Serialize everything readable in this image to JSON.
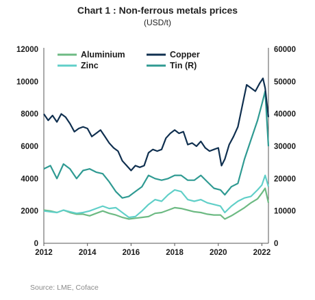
{
  "chart_data": {
    "type": "line",
    "title": "Chart 1 : Non-ferrous metals prices",
    "subtitle": "(USD/t)",
    "source": "Source: LME, Coface",
    "x_ticks": [
      "2012",
      "2014",
      "2016",
      "2018",
      "2020",
      "2022"
    ],
    "xlim": [
      2012,
      2022.3
    ],
    "y_left": {
      "ticks": [
        "0",
        "2000",
        "4000",
        "6000",
        "8000",
        "10000",
        "12000"
      ],
      "lim": [
        0,
        12000
      ]
    },
    "y_right": {
      "ticks": [
        "0",
        "10000",
        "20000",
        "30000",
        "40000",
        "50000",
        "60000"
      ],
      "lim": [
        0,
        60000
      ]
    },
    "legend_position": "top",
    "grid": false,
    "series": [
      {
        "name": "Aluminium",
        "axis": "left",
        "color": "#6dba83",
        "x": [
          2012.0,
          2012.3,
          2012.6,
          2012.9,
          2013.2,
          2013.5,
          2013.8,
          2014.1,
          2014.4,
          2014.7,
          2015.0,
          2015.3,
          2015.6,
          2015.9,
          2016.2,
          2016.5,
          2016.8,
          2017.1,
          2017.4,
          2017.7,
          2018.0,
          2018.3,
          2018.6,
          2018.9,
          2019.2,
          2019.5,
          2019.8,
          2020.1,
          2020.3,
          2020.6,
          2020.9,
          2021.2,
          2021.5,
          2021.8,
          2022.0,
          2022.15,
          2022.3
        ],
        "y": [
          2050,
          2000,
          1900,
          2050,
          1900,
          1800,
          1800,
          1700,
          1850,
          2000,
          1850,
          1750,
          1600,
          1500,
          1550,
          1600,
          1650,
          1850,
          1900,
          2050,
          2200,
          2150,
          2050,
          1950,
          1900,
          1800,
          1750,
          1750,
          1500,
          1700,
          1950,
          2200,
          2500,
          2750,
          3100,
          3400,
          2500
        ]
      },
      {
        "name": "Copper",
        "axis": "left",
        "color": "#0f2f4f",
        "x": [
          2012.0,
          2012.2,
          2012.4,
          2012.6,
          2012.8,
          2013.0,
          2013.2,
          2013.4,
          2013.6,
          2013.8,
          2014.0,
          2014.2,
          2014.4,
          2014.6,
          2014.8,
          2015.0,
          2015.2,
          2015.4,
          2015.6,
          2015.8,
          2016.0,
          2016.2,
          2016.4,
          2016.6,
          2016.8,
          2017.0,
          2017.2,
          2017.4,
          2017.6,
          2017.8,
          2018.0,
          2018.2,
          2018.4,
          2018.6,
          2018.8,
          2019.0,
          2019.2,
          2019.4,
          2019.6,
          2019.8,
          2020.0,
          2020.15,
          2020.3,
          2020.5,
          2020.7,
          2020.9,
          2021.1,
          2021.3,
          2021.5,
          2021.7,
          2021.9,
          2022.05,
          2022.15,
          2022.3
        ],
        "y": [
          8000,
          7600,
          7900,
          7500,
          8000,
          7800,
          7400,
          6900,
          7100,
          7200,
          7100,
          6600,
          6800,
          7000,
          6600,
          6200,
          5900,
          5700,
          5100,
          4800,
          4500,
          4800,
          4700,
          4800,
          5600,
          5800,
          5700,
          5800,
          6500,
          6800,
          7000,
          6800,
          6900,
          6100,
          6200,
          6000,
          6300,
          5900,
          5700,
          5800,
          5900,
          4800,
          5200,
          6100,
          6600,
          7200,
          8500,
          9800,
          9600,
          9400,
          9900,
          10200,
          9600,
          7800
        ]
      },
      {
        "name": "Zinc",
        "axis": "left",
        "color": "#60cfc8",
        "x": [
          2012.0,
          2012.3,
          2012.6,
          2012.9,
          2013.2,
          2013.5,
          2013.8,
          2014.1,
          2014.4,
          2014.7,
          2015.0,
          2015.3,
          2015.6,
          2015.9,
          2016.2,
          2016.5,
          2016.8,
          2017.1,
          2017.4,
          2017.7,
          2018.0,
          2018.3,
          2018.6,
          2018.9,
          2019.2,
          2019.5,
          2019.8,
          2020.1,
          2020.3,
          2020.6,
          2020.9,
          2021.2,
          2021.5,
          2021.8,
          2022.0,
          2022.15,
          2022.3
        ],
        "y": [
          2000,
          1950,
          1900,
          2050,
          1950,
          1850,
          1900,
          2000,
          2150,
          2300,
          2150,
          2200,
          1900,
          1600,
          1650,
          2000,
          2400,
          2700,
          2600,
          3000,
          3300,
          3200,
          2700,
          2600,
          2700,
          2500,
          2400,
          2300,
          1900,
          2300,
          2600,
          2800,
          2900,
          3300,
          3600,
          4200,
          3500
        ]
      },
      {
        "name": "Tin (R)",
        "axis": "right",
        "color": "#2f9a92",
        "x": [
          2012.0,
          2012.3,
          2012.6,
          2012.9,
          2013.2,
          2013.5,
          2013.8,
          2014.1,
          2014.4,
          2014.7,
          2015.0,
          2015.3,
          2015.6,
          2015.9,
          2016.2,
          2016.5,
          2016.8,
          2017.1,
          2017.4,
          2017.7,
          2018.0,
          2018.3,
          2018.6,
          2018.9,
          2019.2,
          2019.5,
          2019.8,
          2020.1,
          2020.3,
          2020.6,
          2020.9,
          2021.2,
          2021.5,
          2021.8,
          2022.0,
          2022.15,
          2022.3
        ],
        "y": [
          23000,
          24000,
          20000,
          24500,
          23000,
          20000,
          22500,
          23000,
          22000,
          21500,
          19000,
          16000,
          14000,
          14500,
          16000,
          17500,
          21000,
          20000,
          19500,
          20000,
          21000,
          21000,
          19500,
          19500,
          21000,
          19000,
          17000,
          16500,
          15000,
          17500,
          18500,
          26000,
          32000,
          38000,
          43000,
          47000,
          30000
        ]
      }
    ]
  }
}
